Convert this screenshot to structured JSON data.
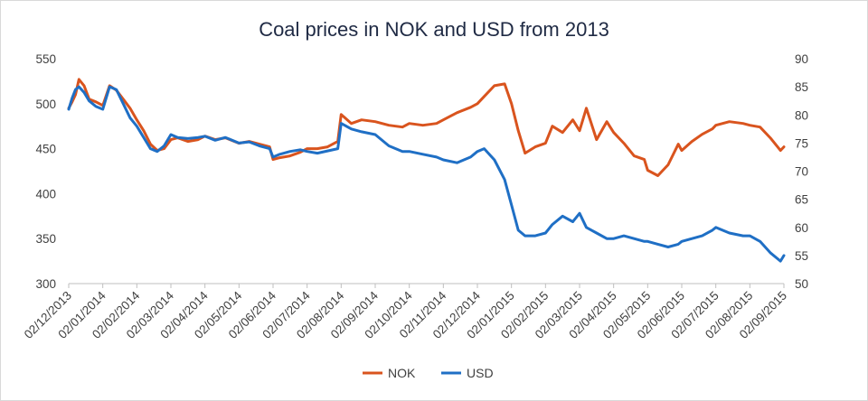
{
  "chart_data": {
    "type": "line",
    "title": "Coal prices in NOK and USD from 2013",
    "xlabel": "",
    "ylabel": "",
    "grid": false,
    "legend_position": "bottom",
    "x_tick_labels": [
      "02/12/2013",
      "02/01/2014",
      "02/02/2014",
      "02/03/2014",
      "02/04/2014",
      "02/05/2014",
      "02/06/2014",
      "02/07/2014",
      "02/08/2014",
      "02/09/2014",
      "02/10/2014",
      "02/11/2014",
      "02/12/2014",
      "02/01/2015",
      "02/02/2015",
      "02/03/2015",
      "02/04/2015",
      "02/05/2015",
      "02/06/2015",
      "02/07/2015",
      "02/08/2015",
      "02/09/2015"
    ],
    "left_axis": {
      "min": 300,
      "max": 550,
      "ticks": [
        "550",
        "500",
        "450",
        "400",
        "350",
        "300"
      ]
    },
    "right_axis": {
      "min": 50,
      "max": 90,
      "ticks": [
        "90",
        "85",
        "80",
        "75",
        "70",
        "65",
        "60",
        "55",
        "50"
      ]
    },
    "series": [
      {
        "name": "NOK",
        "axis": "left",
        "color": "#d9541e",
        "x": [
          0,
          0.1,
          0.2,
          0.3,
          0.45,
          0.6,
          0.8,
          1.0,
          1.2,
          1.4,
          1.6,
          1.8,
          2.0,
          2.2,
          2.4,
          2.6,
          2.8,
          3.0,
          3.2,
          3.5,
          3.8,
          4.0,
          4.3,
          4.6,
          5.0,
          5.3,
          5.6,
          5.9,
          6.0,
          6.2,
          6.5,
          6.8,
          7.0,
          7.3,
          7.6,
          7.9,
          8.0,
          8.3,
          8.6,
          9.0,
          9.4,
          9.8,
          10.0,
          10.4,
          10.8,
          11.0,
          11.4,
          11.8,
          12.0,
          12.2,
          12.5,
          12.8,
          13.0,
          13.2,
          13.4,
          13.7,
          14.0,
          14.2,
          14.5,
          14.8,
          15.0,
          15.2,
          15.5,
          15.8,
          16.0,
          16.3,
          16.6,
          16.9,
          17.0,
          17.3,
          17.6,
          17.9,
          18.0,
          18.3,
          18.6,
          18.9,
          19.0,
          19.4,
          19.8,
          20.0,
          20.3,
          20.6,
          20.9,
          21.0
        ],
        "values": [
          495,
          502,
          510,
          527,
          520,
          505,
          502,
          498,
          520,
          515,
          505,
          495,
          482,
          470,
          455,
          448,
          450,
          460,
          462,
          458,
          460,
          464,
          460,
          462,
          456,
          458,
          455,
          452,
          438,
          440,
          442,
          446,
          450,
          450,
          452,
          458,
          488,
          478,
          482,
          480,
          476,
          474,
          478,
          476,
          478,
          482,
          490,
          496,
          500,
          508,
          520,
          522,
          500,
          470,
          445,
          452,
          456,
          475,
          468,
          482,
          470,
          495,
          460,
          480,
          468,
          456,
          442,
          438,
          426,
          420,
          432,
          455,
          448,
          458,
          466,
          472,
          476,
          480,
          478,
          476,
          474,
          462,
          448,
          452
        ]
      },
      {
        "name": "USD",
        "axis": "right",
        "color": "#1f6fc5",
        "x": [
          0,
          0.1,
          0.2,
          0.3,
          0.45,
          0.6,
          0.8,
          1.0,
          1.2,
          1.4,
          1.6,
          1.8,
          2.0,
          2.2,
          2.4,
          2.6,
          2.8,
          3.0,
          3.2,
          3.5,
          3.8,
          4.0,
          4.3,
          4.6,
          5.0,
          5.3,
          5.6,
          5.9,
          6.0,
          6.2,
          6.5,
          6.8,
          7.0,
          7.3,
          7.6,
          7.9,
          8.0,
          8.3,
          8.6,
          9.0,
          9.4,
          9.8,
          10.0,
          10.4,
          10.8,
          11.0,
          11.4,
          11.8,
          12.0,
          12.2,
          12.5,
          12.8,
          13.0,
          13.2,
          13.4,
          13.7,
          14.0,
          14.2,
          14.5,
          14.8,
          15.0,
          15.2,
          15.5,
          15.8,
          16.0,
          16.3,
          16.6,
          16.9,
          17.0,
          17.3,
          17.6,
          17.9,
          18.0,
          18.3,
          18.6,
          18.9,
          19.0,
          19.4,
          19.8,
          20.0,
          20.3,
          20.6,
          20.9,
          21.0
        ],
        "values": [
          81.0,
          83.0,
          84.5,
          85.0,
          84.0,
          82.5,
          81.5,
          81.0,
          85.0,
          84.5,
          82.0,
          79.5,
          78.0,
          76.0,
          74.0,
          73.5,
          74.5,
          76.5,
          76.0,
          75.8,
          76.0,
          76.2,
          75.5,
          76.0,
          75.0,
          75.2,
          74.5,
          74.0,
          72.5,
          73.0,
          73.5,
          73.8,
          73.5,
          73.2,
          73.6,
          74.0,
          78.5,
          77.5,
          77.0,
          76.5,
          74.5,
          73.5,
          73.5,
          73.0,
          72.5,
          72.0,
          71.5,
          72.5,
          73.5,
          74.0,
          72.0,
          68.5,
          64.0,
          59.5,
          58.5,
          58.5,
          59.0,
          60.5,
          62.0,
          61.0,
          62.5,
          60.0,
          59.0,
          58.0,
          58.0,
          58.5,
          58.0,
          57.5,
          57.5,
          57.0,
          56.5,
          57.0,
          57.5,
          58.0,
          58.5,
          59.5,
          60.0,
          59.0,
          58.5,
          58.5,
          57.5,
          55.5,
          54.0,
          55.0
        ]
      }
    ]
  }
}
